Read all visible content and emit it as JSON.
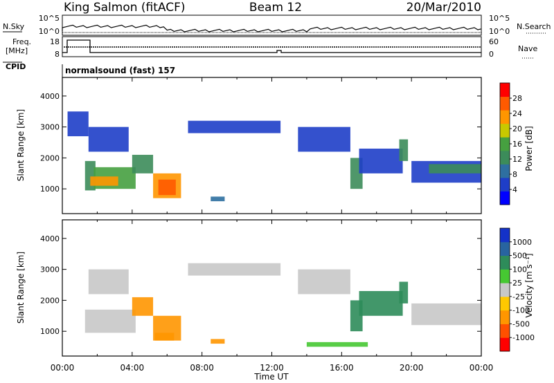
{
  "header": {
    "station": "King Salmon (fitACF)",
    "beam": "Beam 12",
    "date": "20/Mar/2010"
  },
  "noise_panel": {
    "left_label": "N.Sky",
    "right_label": "N.Search",
    "left_ticks": [
      "10^5",
      "10^0"
    ],
    "right_ticks": [
      "10^5",
      "10^0"
    ]
  },
  "freq_panel": {
    "left_label_1": "Freq.",
    "left_label_2": "[MHz]",
    "right_label": "Nave",
    "left_ticks": [
      "18",
      "8"
    ],
    "right_ticks": [
      "60",
      "0"
    ]
  },
  "cpid": {
    "label": "CPID",
    "value": "normalsound (fast) 157"
  },
  "chart_data": [
    {
      "type": "heatmap",
      "name": "power",
      "ylabel": "Slant Range [km]",
      "yticks": [
        "4000",
        "3000",
        "2000",
        "1000"
      ],
      "ylim": [
        200,
        4600
      ],
      "xlim": [
        0,
        24
      ],
      "colorbar": {
        "label": "Power [dB]",
        "ticks": [
          "28",
          "24",
          "20",
          "16",
          "12",
          "8",
          "4"
        ],
        "colors": [
          "#0000ff",
          "#1e3ec8",
          "#2e6fa0",
          "#3c8c5a",
          "#46a040",
          "#c8c800",
          "#ff9600",
          "#ff5a00",
          "#ff0000"
        ]
      },
      "regions": [
        {
          "t0": 0.3,
          "t1": 1.5,
          "r0": 2700,
          "r1": 3500,
          "value": 6
        },
        {
          "t0": 1.5,
          "t1": 3.8,
          "r0": 2200,
          "r1": 3000,
          "value": 7
        },
        {
          "t0": 1.3,
          "t1": 1.9,
          "r0": 950,
          "r1": 1900,
          "value": 14
        },
        {
          "t0": 1.8,
          "t1": 4.2,
          "r0": 1000,
          "r1": 1700,
          "value": 16
        },
        {
          "t0": 1.6,
          "t1": 3.2,
          "r0": 1100,
          "r1": 1400,
          "value": 24
        },
        {
          "t0": 4.0,
          "t1": 5.2,
          "r0": 1500,
          "r1": 2100,
          "value": 14
        },
        {
          "t0": 5.2,
          "t1": 6.8,
          "r0": 700,
          "r1": 1500,
          "value": 22
        },
        {
          "t0": 5.5,
          "t1": 6.5,
          "r0": 800,
          "r1": 1300,
          "value": 28
        },
        {
          "t0": 8.5,
          "t1": 9.3,
          "r0": 600,
          "r1": 750,
          "value": 10
        },
        {
          "t0": 7.2,
          "t1": 12.5,
          "r0": 2800,
          "r1": 3200,
          "value": 6
        },
        {
          "t0": 13.5,
          "t1": 16.5,
          "r0": 2200,
          "r1": 3000,
          "value": 6
        },
        {
          "t0": 16.5,
          "t1": 17.2,
          "r0": 1000,
          "r1": 2000,
          "value": 12
        },
        {
          "t0": 17.0,
          "t1": 19.5,
          "r0": 1500,
          "r1": 2300,
          "value": 6
        },
        {
          "t0": 19.3,
          "t1": 19.8,
          "r0": 1900,
          "r1": 2600,
          "value": 12
        },
        {
          "t0": 20.0,
          "t1": 24.0,
          "r0": 1200,
          "r1": 1900,
          "value": 7
        },
        {
          "t0": 21.0,
          "t1": 24.0,
          "r0": 1500,
          "r1": 1800,
          "value": 13
        }
      ]
    },
    {
      "type": "heatmap",
      "name": "velocity",
      "ylabel": "Slant Range [km]",
      "yticks": [
        "4000",
        "3000",
        "2000",
        "1000"
      ],
      "ylim": [
        200,
        4600
      ],
      "xlim": [
        0,
        24
      ],
      "xticks": [
        "00:00",
        "04:00",
        "08:00",
        "12:00",
        "16:00",
        "20:00",
        "00:00"
      ],
      "xlabel": "Time UT",
      "colorbar": {
        "label": "Velocity [m s⁻¹]",
        "ticks": [
          "1000",
          "500",
          "100",
          "25",
          "-25",
          "-100",
          "-500",
          "-1000"
        ],
        "colors": [
          "#1432c8",
          "#2864a0",
          "#2e8c5a",
          "#46c832",
          "#c8c8c8",
          "#ffc800",
          "#ff9600",
          "#ff5000",
          "#ff0000"
        ]
      },
      "regions": [
        {
          "t0": 1.3,
          "t1": 4.2,
          "r0": 950,
          "r1": 1700,
          "value": 0
        },
        {
          "t0": 1.5,
          "t1": 3.8,
          "r0": 2200,
          "r1": 3000,
          "value": 5
        },
        {
          "t0": 4.0,
          "t1": 5.2,
          "r0": 1500,
          "r1": 2100,
          "value": -200
        },
        {
          "t0": 5.2,
          "t1": 6.8,
          "r0": 700,
          "r1": 1500,
          "value": -400
        },
        {
          "t0": 5.3,
          "t1": 6.4,
          "r0": 700,
          "r1": 950,
          "value": -150
        },
        {
          "t0": 8.5,
          "t1": 9.3,
          "r0": 600,
          "r1": 750,
          "value": -150
        },
        {
          "t0": 7.2,
          "t1": 12.5,
          "r0": 2800,
          "r1": 3200,
          "value": 0
        },
        {
          "t0": 13.5,
          "t1": 16.5,
          "r0": 2200,
          "r1": 3000,
          "value": 0
        },
        {
          "t0": 14.0,
          "t1": 17.5,
          "r0": 500,
          "r1": 650,
          "value": 60
        },
        {
          "t0": 16.5,
          "t1": 17.2,
          "r0": 1000,
          "r1": 2000,
          "value": 300
        },
        {
          "t0": 17.0,
          "t1": 19.5,
          "r0": 1500,
          "r1": 2300,
          "value": 300
        },
        {
          "t0": 19.3,
          "t1": 19.8,
          "r0": 1900,
          "r1": 2600,
          "value": 200
        },
        {
          "t0": 20.0,
          "t1": 24.0,
          "r0": 1200,
          "r1": 1900,
          "value": 0
        }
      ]
    }
  ]
}
